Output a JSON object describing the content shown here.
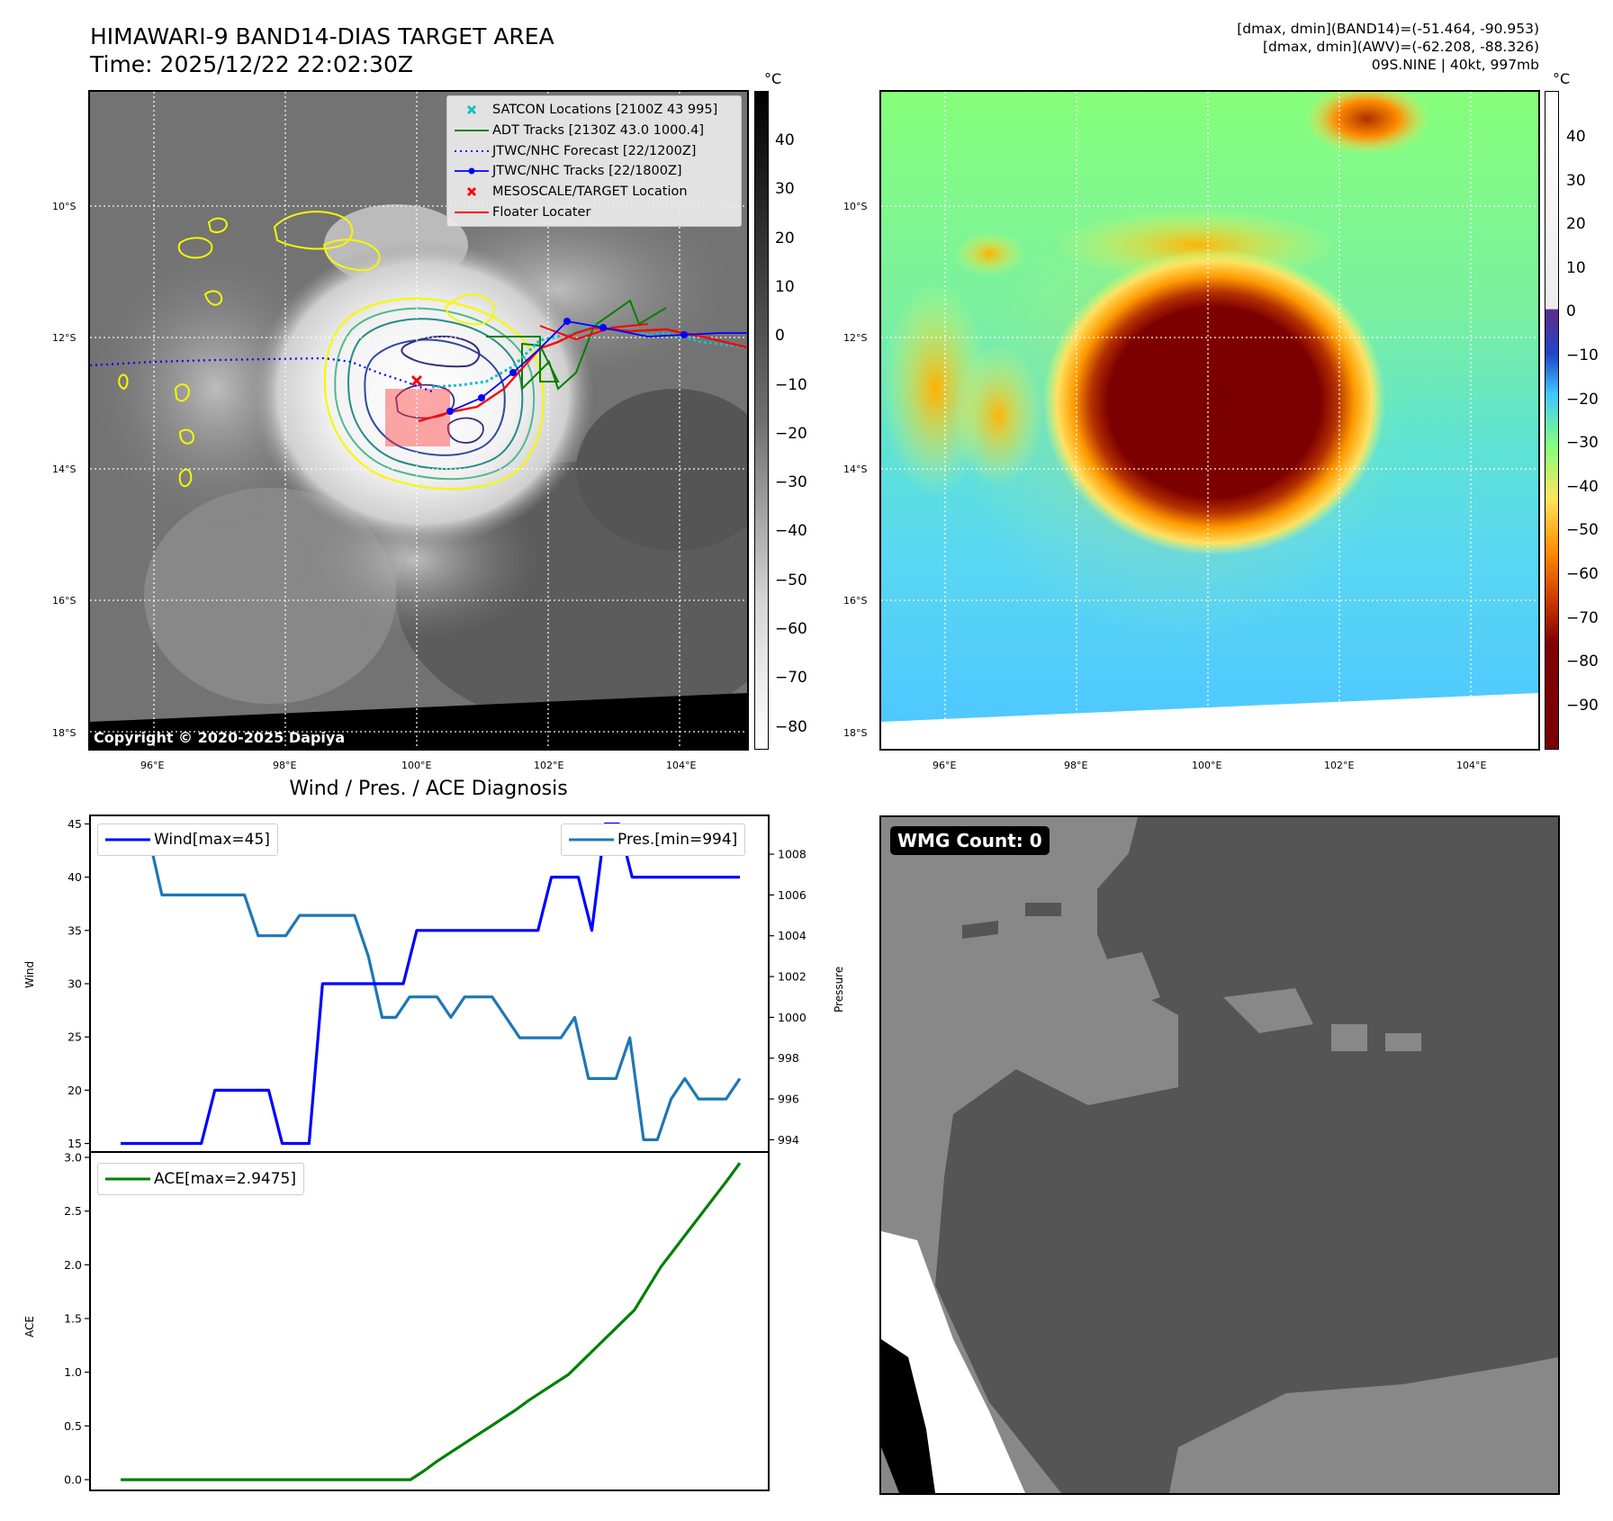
{
  "header": {
    "title_line1": "HIMAWARI-9 BAND14-DIAS TARGET AREA",
    "title_line2": "Time: 2025/12/22 22:02:30Z",
    "stats_line1": "[dmax, dmin](BAND14)=(-51.464, -90.953)",
    "stats_line2": "[dmax, dmin](AWV)=(-62.208, -88.326)",
    "stats_line3": "09S.NINE | 40kt, 997mb"
  },
  "map": {
    "lat_labels": [
      "10°S",
      "12°S",
      "14°S",
      "16°S",
      "18°S"
    ],
    "lon_labels": [
      "96°E",
      "98°E",
      "100°E",
      "102°E",
      "104°E"
    ],
    "copyright": "Copyright © 2020-2025 Dapiya",
    "legend": [
      {
        "label": "SATCON Locations [2100Z 43 995]",
        "color": "#17bec8",
        "symbol": "x"
      },
      {
        "label": "ADT Tracks [2130Z 43.0 1000.4]",
        "color": "#008000",
        "symbol": "line"
      },
      {
        "label": "JTWC/NHC Forecast [22/1200Z]",
        "color": "#0000ff",
        "symbol": "dotted"
      },
      {
        "label": "JTWC/NHC Tracks [22/1800Z]",
        "color": "#0000ff",
        "symbol": "line-dot"
      },
      {
        "label": "MESOSCALE/TARGET Location",
        "color": "#ff0000",
        "symbol": "x"
      },
      {
        "label": "Floater Locater",
        "color": "#ff0000",
        "symbol": "line"
      }
    ]
  },
  "colorbar_left": {
    "unit": "°C",
    "ticks": [
      "40",
      "30",
      "20",
      "10",
      "0",
      "−10",
      "−20",
      "−30",
      "−40",
      "−50",
      "−60",
      "−70",
      "−80"
    ]
  },
  "colorbar_right": {
    "unit": "°C",
    "ticks": [
      "40",
      "30",
      "20",
      "10",
      "0",
      "−10",
      "−20",
      "−30",
      "−40",
      "−50",
      "−60",
      "−70",
      "−80",
      "−90"
    ]
  },
  "diagnosis": {
    "title": "Wind / Pres. / ACE Diagnosis",
    "wind_axis_label": "Wind",
    "pressure_axis_label": "Pressure",
    "ace_axis_label": "ACE",
    "wind_legend": "Wind[max=45]",
    "pressure_legend": "Pres.[min=994]",
    "ace_legend": "ACE[max=2.9475]"
  },
  "wmg": {
    "label": "WMG Count: 0"
  },
  "chart_data": [
    {
      "type": "line",
      "title": "Wind / Pres. / ACE Diagnosis",
      "ylabel": "Wind",
      "ylim": [
        14.2,
        45.8
      ],
      "y_ticks": [
        15,
        20,
        25,
        30,
        35,
        40,
        45
      ],
      "series": [
        {
          "name": "Wind[max=45]",
          "color": "#0000ff",
          "values": [
            15,
            15,
            15,
            15,
            15,
            15,
            15,
            20,
            20,
            20,
            20,
            20,
            15,
            15,
            15,
            30,
            30,
            30,
            30,
            30,
            30,
            30,
            35,
            35,
            35,
            35,
            35,
            35,
            35,
            35,
            35,
            35,
            40,
            40,
            40,
            35,
            45,
            45,
            40,
            40,
            40,
            40,
            40,
            40,
            40,
            40,
            40
          ]
        }
      ]
    },
    {
      "type": "line",
      "ylabel": "Pressure",
      "ylim": [
        993.4,
        1009.9
      ],
      "y_ticks": [
        994,
        996,
        998,
        1000,
        1002,
        1004,
        1006,
        1008
      ],
      "series": [
        {
          "name": "Pres.[min=994]",
          "color": "#1f77b4",
          "values": [
            1009,
            1009,
            1009,
            1006,
            1006,
            1006,
            1006,
            1006,
            1006,
            1006,
            1004,
            1004,
            1004,
            1005,
            1005,
            1005,
            1005,
            1005,
            1003,
            1000,
            1000,
            1001,
            1001,
            1001,
            1000,
            1001,
            1001,
            1001,
            1000,
            999,
            999,
            999,
            999,
            1000,
            997,
            997,
            997,
            999,
            994,
            994,
            996,
            997,
            996,
            996,
            996,
            997
          ]
        }
      ]
    },
    {
      "type": "line",
      "ylabel": "ACE",
      "ylim": [
        -0.1,
        3.05
      ],
      "y_ticks": [
        0.0,
        0.5,
        1.0,
        1.5,
        2.0,
        2.5,
        3.0
      ],
      "series": [
        {
          "name": "ACE[max=2.9475]",
          "color": "#008000",
          "values": [
            0,
            0,
            0,
            0,
            0,
            0,
            0,
            0,
            0,
            0,
            0,
            0,
            0,
            0,
            0,
            0,
            0,
            0,
            0,
            0,
            0,
            0,
            0,
            0.08,
            0.17,
            0.25,
            0.33,
            0.41,
            0.49,
            0.57,
            0.65,
            0.74,
            0.82,
            0.9,
            0.98,
            1.1,
            1.22,
            1.34,
            1.46,
            1.58,
            1.78,
            1.98,
            2.14,
            2.3,
            2.46,
            2.62,
            2.78,
            2.9475
          ]
        }
      ]
    }
  ]
}
